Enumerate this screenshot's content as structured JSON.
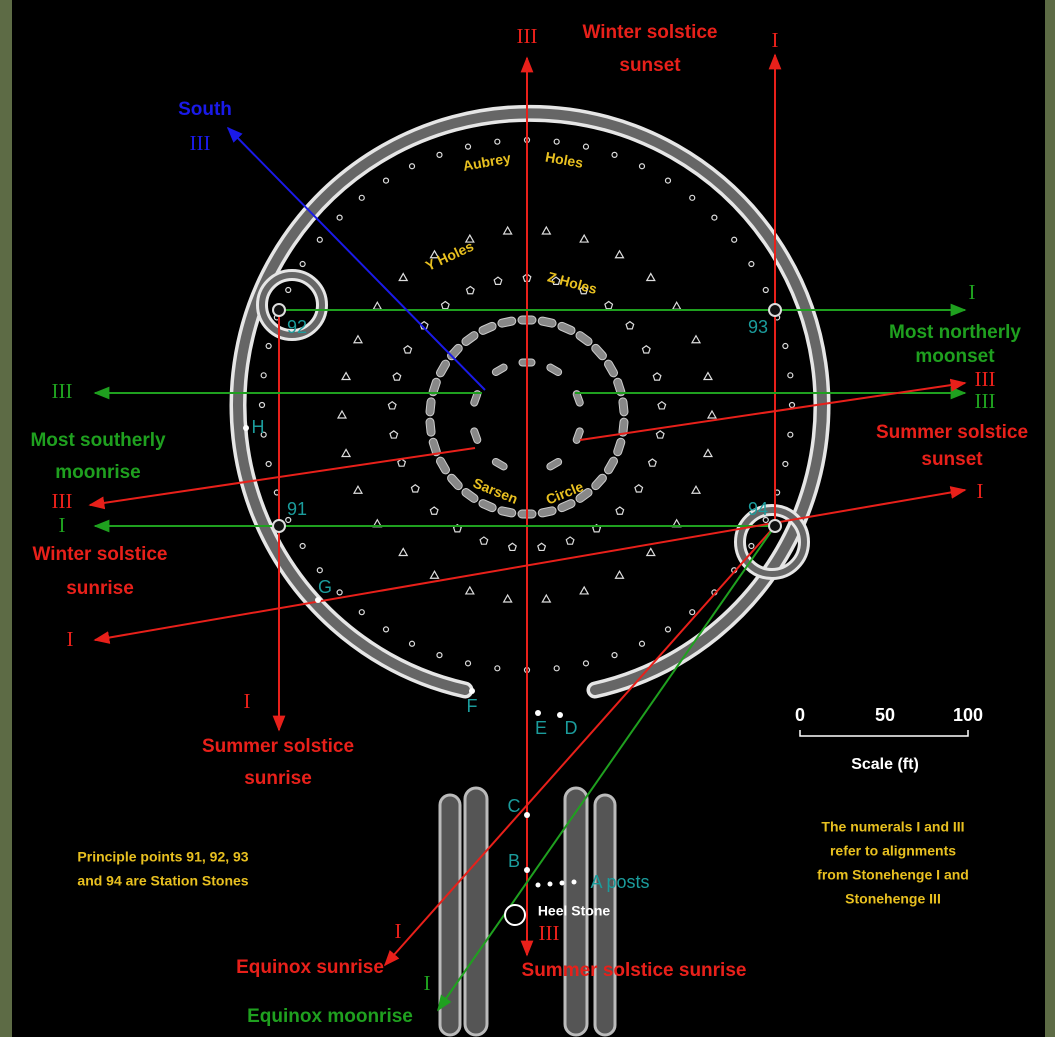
{
  "labels": {
    "ws_sunset_num": "III",
    "ws_sunset": [
      "Winter solstice",
      "sunset"
    ],
    "top_right_num": "I",
    "south": "South",
    "south_num": "III",
    "nm_num": "I",
    "nm": [
      "Most northerly",
      "moonset"
    ],
    "ss_sunset_num_red": "III",
    "ss_sunset_num_green": "III",
    "ss_sunset": [
      "Summer solstice",
      "sunset"
    ],
    "right_red_num": "I",
    "left_green_num": "III",
    "sm": [
      "Most southerly",
      "moonrise"
    ],
    "sm_red_num": "III",
    "ws_sunrise_green_num": "I",
    "ws_sunrise": [
      "Winter solstice",
      "sunrise"
    ],
    "left_red_num": "I",
    "ss_sunrise_left_num": "I",
    "ss_sunrise_left": [
      "Summer solstice",
      "sunrise"
    ],
    "eq_sunrise_num": "I",
    "eq_sunrise": "Equinox sunrise",
    "ss_sunrise_bottom_num": "III",
    "ss_sunrise_bottom": "Summer solstice sunrise",
    "eq_moonrise_num": "I",
    "eq_moonrise": "Equinox moonrise"
  },
  "features": {
    "aubrey": "Aubrey",
    "holes": "Holes",
    "y_holes": "Y Holes",
    "z_holes": "Z Holes",
    "sarsen": "Sarsen",
    "circle": "Circle",
    "heel_stone": "Heel Stone",
    "a_posts": "A posts"
  },
  "station_stones": [
    "91",
    "92",
    "93",
    "94"
  ],
  "markers": [
    "H",
    "G",
    "F",
    "E",
    "D",
    "C",
    "B"
  ],
  "scale": {
    "ticks": [
      0,
      50,
      100
    ],
    "title": "Scale (ft)"
  },
  "notes": {
    "station_stones": [
      "Principle points 91, 92, 93",
      "and 94 are Station Stones"
    ],
    "numerals": [
      "The numerals I and III",
      "refer to alignments",
      "from Stonehenge I and",
      "Stonehenge III"
    ]
  }
}
